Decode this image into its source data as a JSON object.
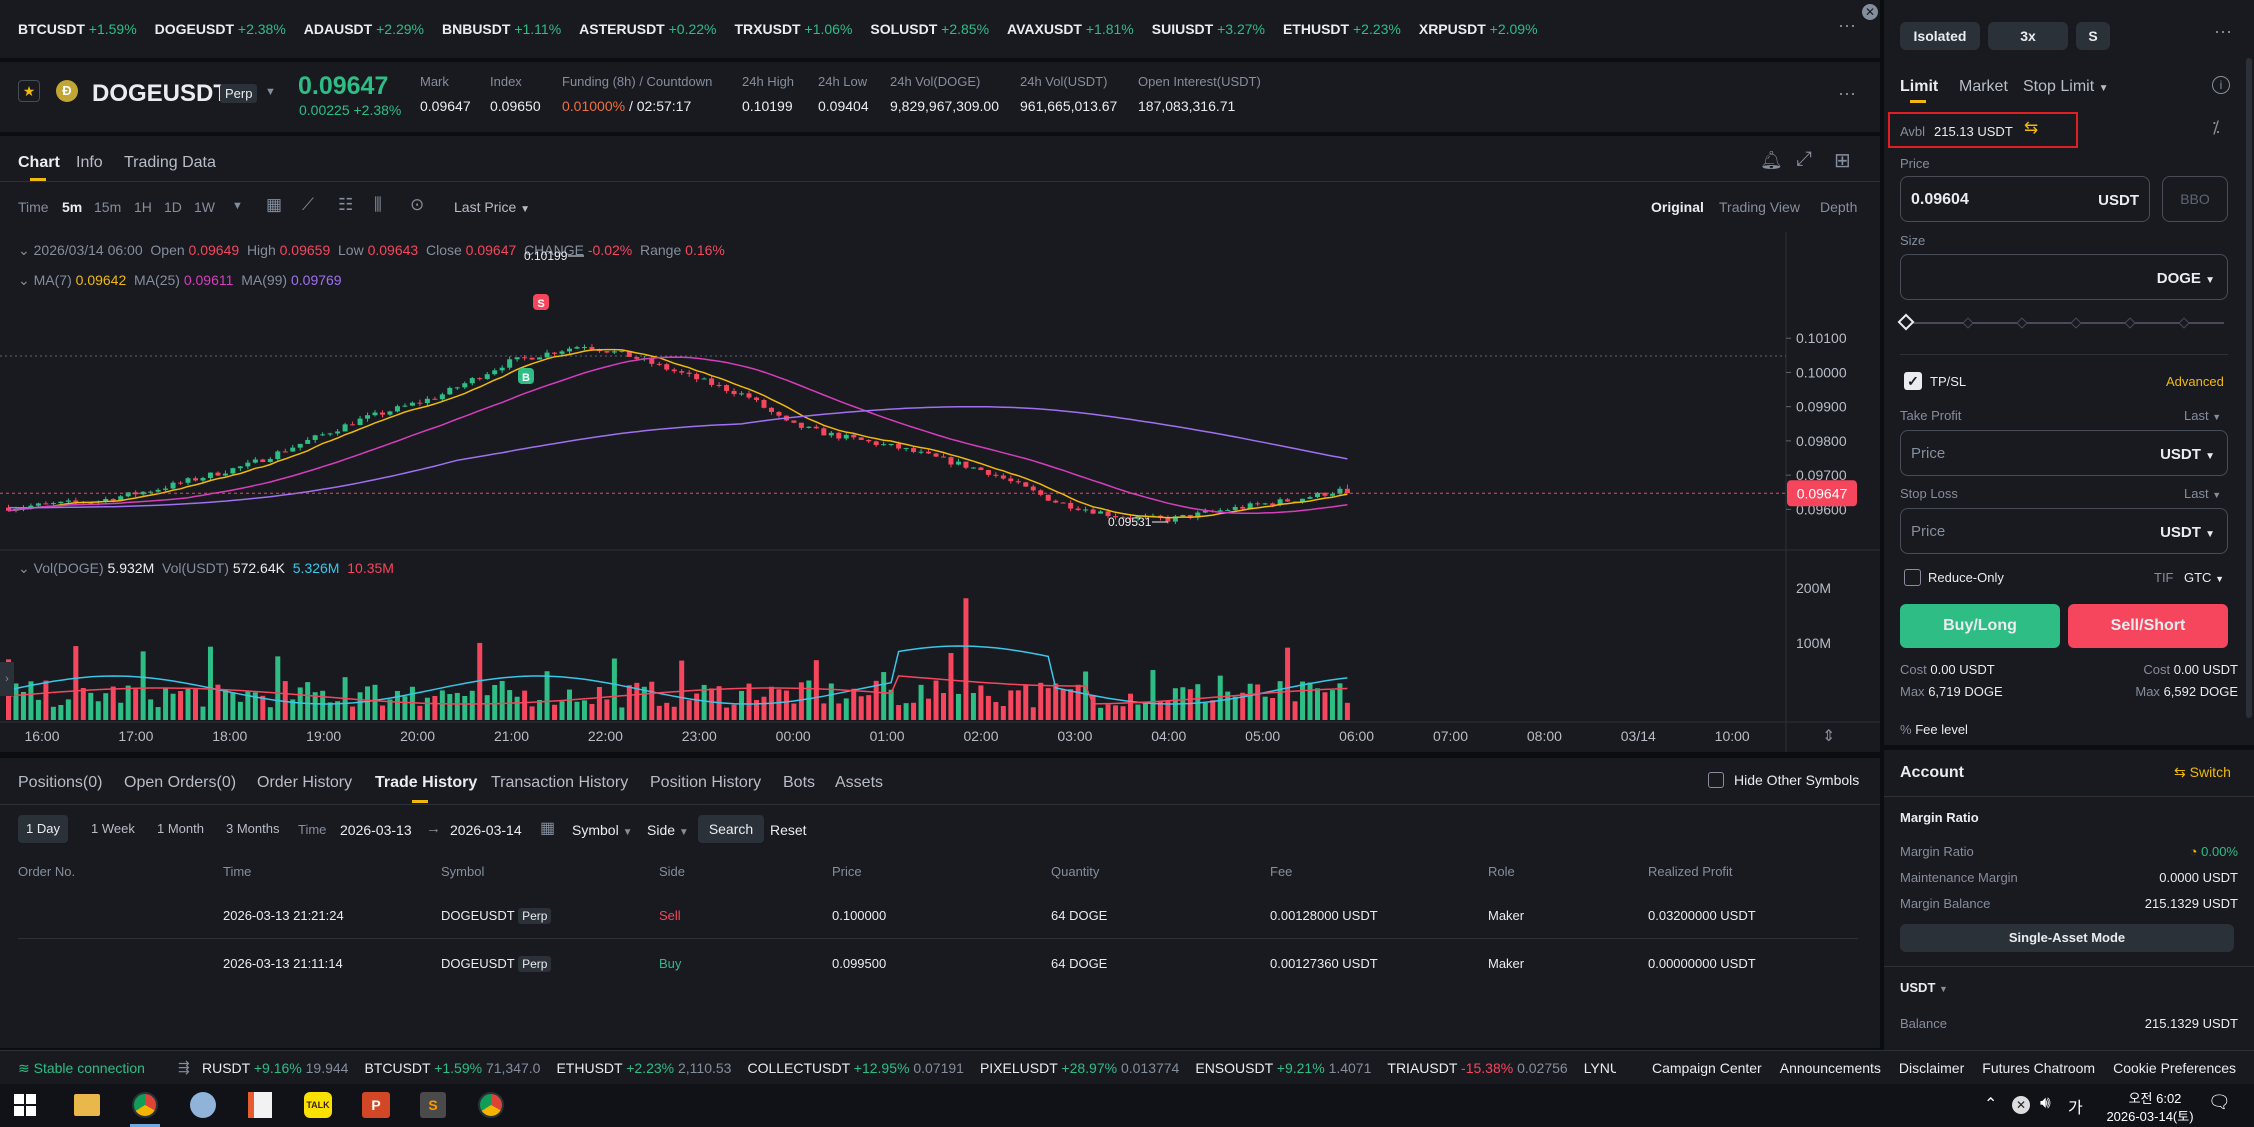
{
  "ticker": [
    {
      "s": "BTCUSDT",
      "c": "+1.59%"
    },
    {
      "s": "DOGEUSDT",
      "c": "+2.38%"
    },
    {
      "s": "ADAUSDT",
      "c": "+2.29%"
    },
    {
      "s": "BNBUSDT",
      "c": "+1.11%"
    },
    {
      "s": "ASTERUSDT",
      "c": "+0.22%"
    },
    {
      "s": "TRXUSDT",
      "c": "+1.06%"
    },
    {
      "s": "SOLUSDT",
      "c": "+2.85%"
    },
    {
      "s": "AVAXUSDT",
      "c": "+1.81%"
    },
    {
      "s": "SUIUSDT",
      "c": "+3.27%"
    },
    {
      "s": "ETHUSDT",
      "c": "+2.23%"
    },
    {
      "s": "XRPUSDT",
      "c": "+2.09%"
    }
  ],
  "header": {
    "symbol": "DOGEUSDT",
    "perp": "Perp",
    "price": "0.09647",
    "change": "0.00225 +2.38%",
    "stats": [
      {
        "l": "Mark",
        "v": "0.09647"
      },
      {
        "l": "Index",
        "v": "0.09650"
      },
      {
        "l": "Funding (8h) / Countdown",
        "v1": "0.01000%",
        "v2": "/ 02:57:17"
      },
      {
        "l": "24h High",
        "v": "0.10199"
      },
      {
        "l": "24h Low",
        "v": "0.09404"
      },
      {
        "l": "24h Vol(DOGE)",
        "v": "9,829,967,309.00"
      },
      {
        "l": "24h Vol(USDT)",
        "v": "961,665,013.67"
      },
      {
        "l": "Open Interest(USDT)",
        "v": "187,083,316.71"
      }
    ]
  },
  "tabs": [
    "Chart",
    "Info",
    "Trading Data"
  ],
  "toolbar": {
    "time": "Time",
    "intervals": [
      "5m",
      "15m",
      "1H",
      "1D",
      "1W"
    ],
    "price_type": "Last Price",
    "views": [
      "Original",
      "Trading View",
      "Depth"
    ]
  },
  "ohlc": {
    "date": "2026/03/14 06:00",
    "open_l": "Open",
    "open": "0.09649",
    "high_l": "High",
    "high": "0.09659",
    "low_l": "Low",
    "low": "0.09643",
    "close_l": "Close",
    "close": "0.09647",
    "change_l": "CHANGE",
    "change": "-0.02%",
    "range_l": "Range",
    "range": "0.16%"
  },
  "ma": {
    "label": "MA(7)",
    "v7": "0.09642",
    "l25": "MA(25)",
    "v25": "0.09611",
    "l99": "MA(99)",
    "v99": "0.09769"
  },
  "vol": {
    "l1": "Vol(DOGE)",
    "v1": "5.932M",
    "l2": "Vol(USDT)",
    "v2": "572.64K",
    "v3": "5.326M",
    "v4": "10.35M"
  },
  "price_axis": [
    "0.10100",
    "0.10000",
    "0.09900",
    "0.09800",
    "0.09700",
    "0.09600"
  ],
  "vol_axis": [
    "200M",
    "100M"
  ],
  "current_price_tag": "0.09647",
  "high_mark": "0.10199",
  "low_mark": "0.09531",
  "time_axis": [
    "16:00",
    "17:00",
    "18:00",
    "19:00",
    "20:00",
    "21:00",
    "22:00",
    "23:00",
    "00:00",
    "01:00",
    "02:00",
    "03:00",
    "04:00",
    "05:00",
    "06:00",
    "07:00",
    "08:00",
    "03/14",
    "10:00"
  ],
  "bottom": {
    "tabs": [
      "Positions(0)",
      "Open Orders(0)",
      "Order History",
      "Trade History",
      "Transaction History",
      "Position History",
      "Bots",
      "Assets"
    ],
    "hide_other": "Hide Other Symbols",
    "ranges": [
      "1 Day",
      "1 Week",
      "1 Month",
      "3 Months"
    ],
    "time_l": "Time",
    "from": "2026-03-13",
    "to": "2026-03-14",
    "symbol": "Symbol",
    "side": "Side",
    "search": "Search",
    "reset": "Reset",
    "cols": [
      "Order No.",
      "Time",
      "Symbol",
      "Side",
      "Price",
      "Quantity",
      "Fee",
      "Role",
      "Realized Profit"
    ],
    "rows": [
      {
        "time": "2026-03-13 21:21:24",
        "symbol": "DOGEUSDT",
        "perp": "Perp",
        "side": "Sell",
        "price": "0.100000",
        "qty": "64 DOGE",
        "fee": "0.00128000 USDT",
        "role": "Maker",
        "profit": "0.03200000 USDT"
      },
      {
        "time": "2026-03-13 21:11:14",
        "symbol": "DOGEUSDT",
        "perp": "Perp",
        "side": "Buy",
        "price": "0.099500",
        "qty": "64 DOGE",
        "fee": "0.00127360 USDT",
        "role": "Maker",
        "profit": "0.00000000 USDT"
      }
    ]
  },
  "order": {
    "margin": "Isolated",
    "lev": "3x",
    "mode": "S",
    "types": [
      "Limit",
      "Market",
      "Stop Limit"
    ],
    "avbl_l": "Avbl",
    "avbl": "215.13 USDT",
    "price_l": "Price",
    "price": "0.09604",
    "usdt": "USDT",
    "bbo": "BBO",
    "size_l": "Size",
    "doge": "DOGE",
    "tpsl": "TP/SL",
    "advanced": "Advanced",
    "tp_l": "Take Profit",
    "last": "Last",
    "ph": "Price",
    "sl_l": "Stop Loss",
    "reduce": "Reduce-Only",
    "tif": "TIF",
    "gtc": "GTC",
    "buy": "Buy/Long",
    "sell": "Sell/Short",
    "cost_l": "Cost",
    "cost": "0.00 USDT",
    "max_l": "Max",
    "max_buy": "6,719 DOGE",
    "max_sell": "6,592 DOGE",
    "fee": "Fee level"
  },
  "account": {
    "title": "Account",
    "switch": "Switch",
    "mr_title": "Margin Ratio",
    "mr_l": "Margin Ratio",
    "mr": "0.00%",
    "mm_l": "Maintenance Margin",
    "mm": "0.0000 USDT",
    "mb_l": "Margin Balance",
    "mb": "215.1329 USDT",
    "mode": "Single-Asset Mode",
    "asset": "USDT",
    "bal_l": "Balance",
    "bal": "215.1329 USDT"
  },
  "status": {
    "conn": "Stable connection",
    "items": [
      {
        "s": "RUSDT",
        "c": "+9.16%",
        "p": "19.944",
        "up": true
      },
      {
        "s": "BTCUSDT",
        "c": "+1.59%",
        "p": "71,347.0",
        "up": true
      },
      {
        "s": "ETHUSDT",
        "c": "+2.23%",
        "p": "2,110.53",
        "up": true
      },
      {
        "s": "COLLECTUSDT",
        "c": "+12.95%",
        "p": "0.07191",
        "up": true
      },
      {
        "s": "PIXELUSDT",
        "c": "+28.97%",
        "p": "0.013774",
        "up": true
      },
      {
        "s": "ENSOUSDT",
        "c": "+9.21%",
        "p": "1.4071",
        "up": true
      },
      {
        "s": "TRIAUSDT",
        "c": "-15.38%",
        "p": "0.02756",
        "up": false
      },
      {
        "s": "LYNUS",
        "c": "",
        "p": "",
        "up": true
      }
    ],
    "links": [
      "Campaign Center",
      "Announcements",
      "Disclaimer",
      "Futures Chatroom",
      "Cookie Preferences"
    ]
  },
  "clock": {
    "time": "오전 6:02",
    "date": "2026-03-14(토)"
  },
  "colors": {
    "up": "#2ebd85",
    "down": "#f6465d",
    "ma7": "#f0b90b",
    "ma25": "#d63dbc",
    "ma99": "#a070f0"
  }
}
